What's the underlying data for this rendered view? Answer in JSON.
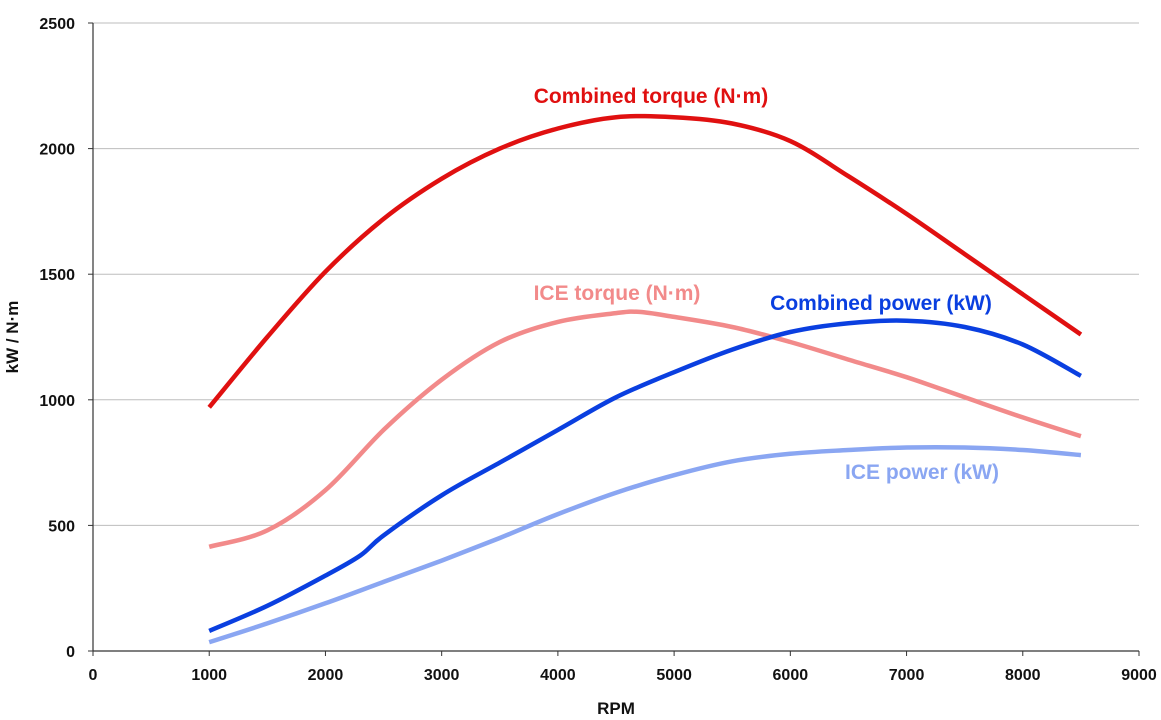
{
  "chart_data": {
    "type": "line",
    "title": "",
    "xlabel": "RPM",
    "ylabel": "kW / N·m",
    "xlim": [
      0,
      9000
    ],
    "ylim": [
      0,
      2500
    ],
    "xticks": [
      "0",
      "1000",
      "2000",
      "3000",
      "4000",
      "5000",
      "6000",
      "7000",
      "8000",
      "9000"
    ],
    "yticks": [
      "0",
      "500",
      "1000",
      "1500",
      "2000",
      "2500"
    ],
    "grid": "horizontal",
    "legend": "inline labels",
    "series": [
      {
        "name": "Combined torque (N·m)",
        "color": "#e01010",
        "x": [
          1000,
          1500,
          2000,
          2500,
          3000,
          3500,
          4000,
          4500,
          5000,
          5500,
          6000,
          6500,
          7000,
          7500,
          8000,
          8500
        ],
        "y": [
          970,
          1250,
          1510,
          1720,
          1880,
          2000,
          2080,
          2125,
          2125,
          2100,
          2030,
          1890,
          1740,
          1580,
          1420,
          1260
        ]
      },
      {
        "name": "ICE torque (N·m)",
        "color": "#f28a8a",
        "x": [
          1000,
          1500,
          2000,
          2500,
          3000,
          3500,
          4000,
          4500,
          4700,
          5000,
          5500,
          6000,
          6500,
          7000,
          7500,
          8000,
          8500
        ],
        "y": [
          415,
          480,
          640,
          880,
          1080,
          1230,
          1310,
          1345,
          1350,
          1330,
          1290,
          1230,
          1160,
          1090,
          1010,
          930,
          855
        ]
      },
      {
        "name": "Combined power (kW)",
        "color": "#0a3fe0",
        "x": [
          1000,
          1500,
          2000,
          2300,
          2500,
          3000,
          3500,
          4000,
          4500,
          5000,
          5500,
          6000,
          6500,
          7000,
          7500,
          8000,
          8500
        ],
        "y": [
          80,
          180,
          300,
          380,
          460,
          620,
          750,
          880,
          1010,
          1110,
          1200,
          1270,
          1305,
          1315,
          1290,
          1220,
          1095
        ]
      },
      {
        "name": "ICE power (kW)",
        "color": "#8aa6f2",
        "x": [
          1000,
          1500,
          2000,
          2500,
          3000,
          3500,
          4000,
          4500,
          5000,
          5500,
          6000,
          6500,
          7000,
          7500,
          8000,
          8500
        ],
        "y": [
          35,
          110,
          190,
          275,
          360,
          450,
          545,
          630,
          700,
          755,
          785,
          800,
          810,
          810,
          800,
          780
        ]
      }
    ]
  }
}
